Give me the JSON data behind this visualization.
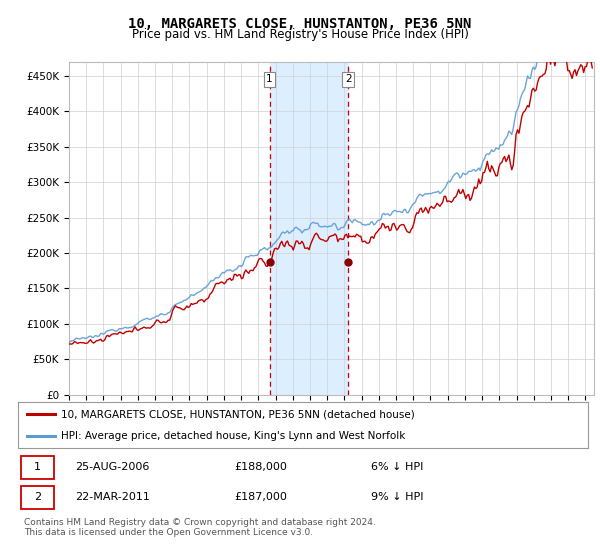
{
  "title": "10, MARGARETS CLOSE, HUNSTANTON, PE36 5NN",
  "subtitle": "Price paid vs. HM Land Registry's House Price Index (HPI)",
  "ylabel_ticks": [
    "£0",
    "£50K",
    "£100K",
    "£150K",
    "£200K",
    "£250K",
    "£300K",
    "£350K",
    "£400K",
    "£450K"
  ],
  "ytick_values": [
    0,
    50000,
    100000,
    150000,
    200000,
    250000,
    300000,
    350000,
    400000,
    450000
  ],
  "ylim": [
    0,
    470000
  ],
  "xlim_start": 1995.0,
  "xlim_end": 2025.5,
  "sale1_year": 2006.65,
  "sale1_price": 188000,
  "sale2_year": 2011.22,
  "sale2_price": 187000,
  "hpi_line_color": "#5b9bd5",
  "price_line_color": "#c00000",
  "sale_marker_color": "#8b0000",
  "shade_color": "#ddeeff",
  "legend_entry1": "10, MARGARETS CLOSE, HUNSTANTON, PE36 5NN (detached house)",
  "legend_entry2": "HPI: Average price, detached house, King's Lynn and West Norfolk",
  "table_row1": [
    "1",
    "25-AUG-2006",
    "£188,000",
    "6% ↓ HPI"
  ],
  "table_row2": [
    "2",
    "22-MAR-2011",
    "£187,000",
    "9% ↓ HPI"
  ],
  "footer": "Contains HM Land Registry data © Crown copyright and database right 2024.\nThis data is licensed under the Open Government Licence v3.0.",
  "grid_color": "#d0d0d0"
}
